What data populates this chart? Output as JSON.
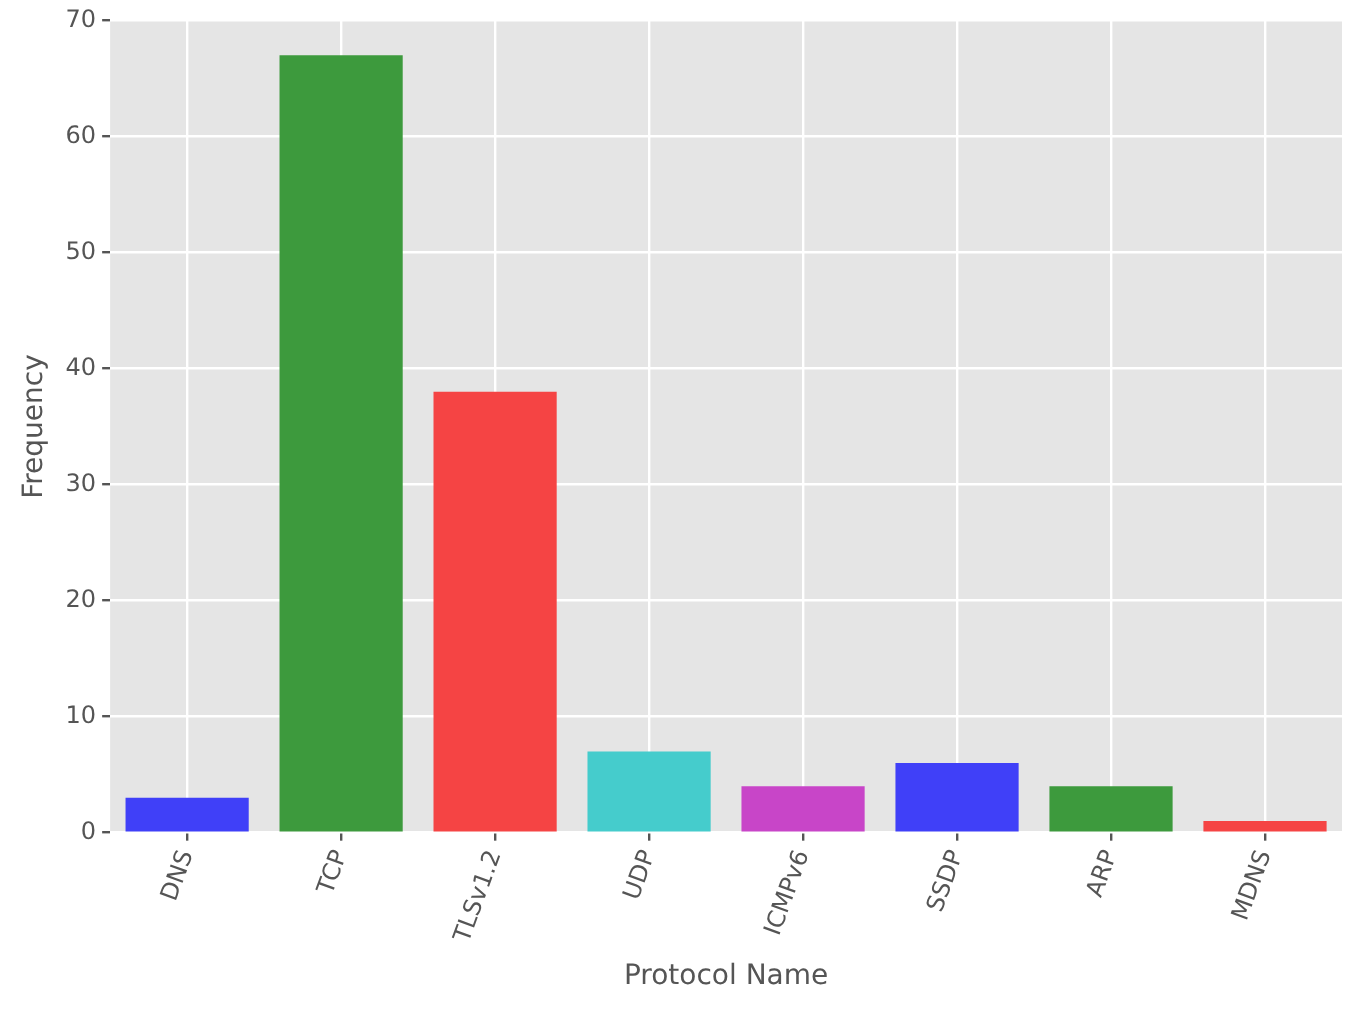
{
  "chart_data": {
    "type": "bar",
    "xlabel": "Protocol Name",
    "ylabel": "Frequency",
    "categories": [
      "DNS",
      "TCP",
      "TLSv1.2",
      "UDP",
      "ICMPv6",
      "SSDP",
      "ARP",
      "MDNS"
    ],
    "values": [
      3,
      67,
      38,
      7,
      4,
      6,
      4,
      1
    ],
    "colors": [
      "#4040f8",
      "#3d9a3d",
      "#f54444",
      "#45cccc",
      "#c845c8",
      "#4040f8",
      "#3d9a3d",
      "#f54444"
    ],
    "ylim": [
      0,
      70
    ],
    "yticks": [
      0,
      10,
      20,
      30,
      40,
      50,
      60,
      70
    ],
    "grid": true
  }
}
